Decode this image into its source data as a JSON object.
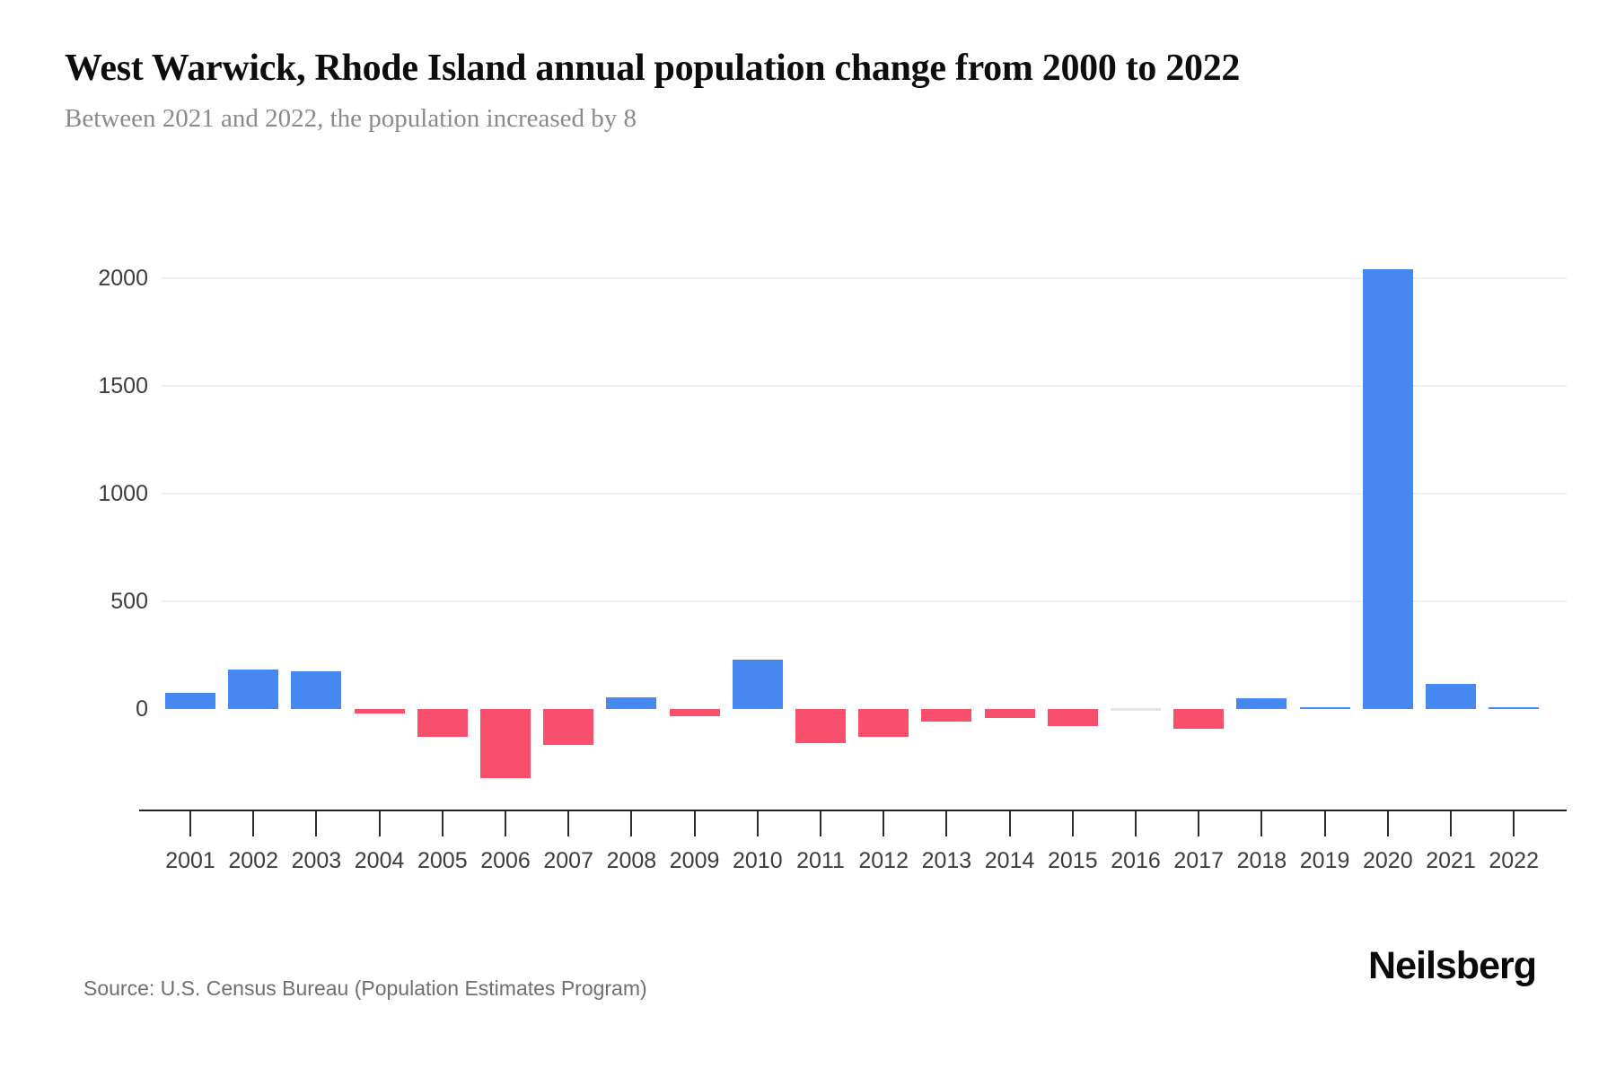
{
  "header": {
    "title": "West Warwick, Rhode Island annual population change from 2000 to 2022",
    "subtitle": "Between 2021 and 2022, the population increased by 8"
  },
  "footer": {
    "source": "Source: U.S. Census Bureau (Population Estimates Program)",
    "brand": "Neilsberg"
  },
  "chart_data": {
    "type": "bar",
    "title": "West Warwick, Rhode Island annual population change from 2000 to 2022",
    "categories": [
      "2001",
      "2002",
      "2003",
      "2004",
      "2005",
      "2006",
      "2007",
      "2008",
      "2009",
      "2010",
      "2011",
      "2012",
      "2013",
      "2014",
      "2015",
      "2016",
      "2017",
      "2018",
      "2019",
      "2020",
      "2021",
      "2022"
    ],
    "values": [
      75,
      185,
      175,
      -20,
      -130,
      -320,
      -165,
      55,
      -35,
      230,
      -160,
      -130,
      -60,
      -40,
      -80,
      0,
      -90,
      50,
      5,
      2040,
      115,
      8
    ],
    "xlabel": "",
    "ylabel": "",
    "yticks": [
      0,
      500,
      1000,
      1500,
      2000
    ],
    "ylim": [
      -460,
      2250
    ],
    "grid": true,
    "legend": false,
    "colors": {
      "positive": "#4787f0",
      "negative": "#f8506c",
      "zero_bar": "#e4e4e4",
      "gridline": "#efefef",
      "axis": "#1f1f1f",
      "tick": "#2e2e2e",
      "tick_label": "#3d3d3d"
    }
  }
}
